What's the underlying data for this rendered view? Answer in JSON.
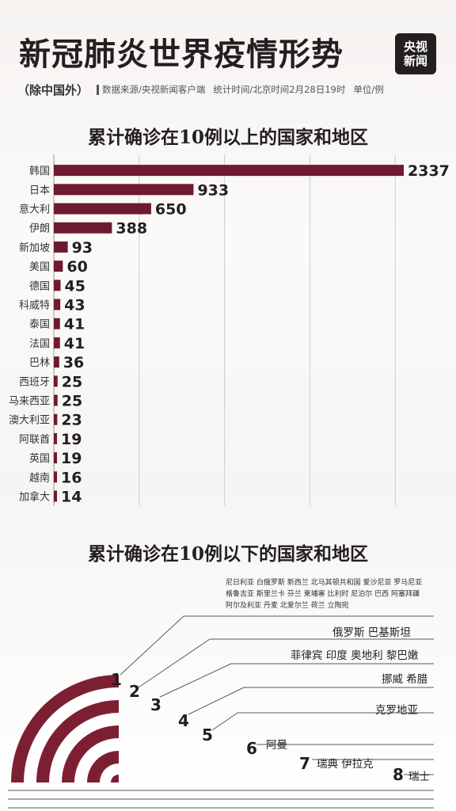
{
  "header": {
    "title": "新冠肺炎世界疫情形势",
    "logo_line1": "央视",
    "logo_line2": "新闻",
    "region": "（除中国外）",
    "source": "数据来源/央视新闻客户端",
    "stat_time": "统计时间/北京时间2月28日19时",
    "unit": "单位/例"
  },
  "colors": {
    "bar": "#6e1a30",
    "arc_dark": "#7d1f33",
    "arc_light": "#ffffff",
    "line": "#5a5a5a",
    "grid": "#cccccc",
    "title": "#231f20"
  },
  "chart_data": {
    "type": "bar",
    "orientation": "horizontal",
    "title": "累计确诊在10例以上的国家和地区",
    "categories": [
      "韩国",
      "日本",
      "意大利",
      "伊朗",
      "新加坡",
      "美国",
      "德国",
      "科威特",
      "泰国",
      "法国",
      "巴林",
      "西班牙",
      "马来西亚",
      "澳大利亚",
      "阿联酋",
      "英国",
      "越南",
      "加拿大"
    ],
    "values": [
      2337,
      933,
      650,
      388,
      93,
      60,
      45,
      43,
      41,
      41,
      36,
      25,
      25,
      23,
      19,
      19,
      16,
      14
    ],
    "xlim": [
      0,
      2337
    ],
    "grid": "vertical",
    "value_labels": true
  },
  "small_counts": {
    "title": "累计确诊在10例以下的国家和地区",
    "groups": [
      {
        "count": "1",
        "lines": [
          "尼日利亚 白俄罗斯 新西兰 北马其顿共和国 爱沙尼亚 罗马尼亚",
          "格鲁吉亚 斯里兰卡 芬兰 柬埔寨 比利时 尼泊尔 巴西 阿塞拜疆",
          "阿尔及利亚 丹麦 北爱尔兰 荷兰 立陶宛"
        ]
      },
      {
        "count": "2",
        "lines": [
          "俄罗斯 巴基斯坦"
        ]
      },
      {
        "count": "3",
        "lines": [
          "菲律宾 印度 奥地利 黎巴嫩"
        ]
      },
      {
        "count": "4",
        "lines": [
          "挪威 希腊"
        ]
      },
      {
        "count": "5",
        "lines": [
          "克罗地亚"
        ]
      },
      {
        "count": "6",
        "lines": [
          "阿曼"
        ]
      },
      {
        "count": "7",
        "lines": [
          "瑞典 伊拉克"
        ]
      },
      {
        "count": "8",
        "lines": [
          "瑞士"
        ]
      }
    ]
  }
}
